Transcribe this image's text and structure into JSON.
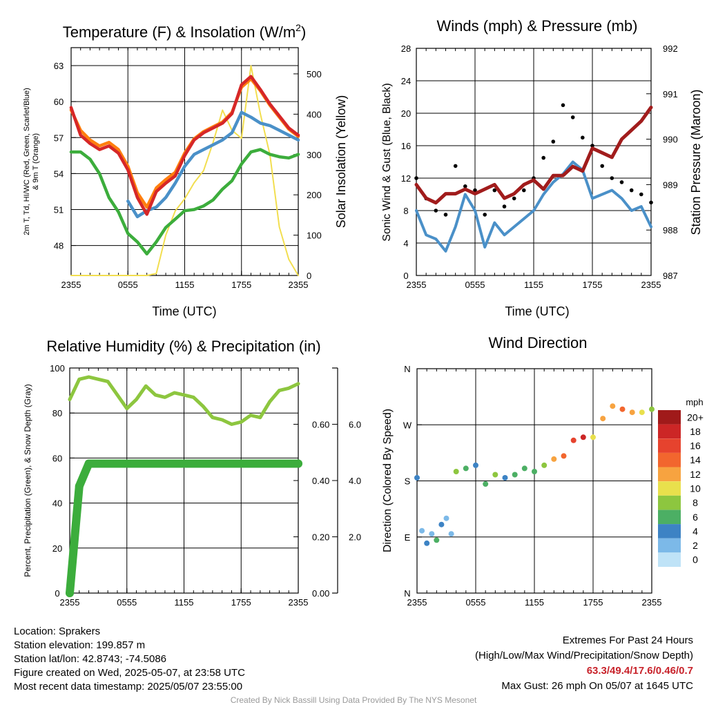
{
  "chart_data": [
    {
      "type": "line",
      "title": "Temperature (F) & Insolation (W/m2)",
      "title_main": "Temperature (F) & Insolation (W/m",
      "title_sup": "2",
      "title_close": ")",
      "xlabel": "Time (UTC)",
      "ylabel_line1": "2m T, Td, HI/WC (Red, Green, Scarlet/Blue)",
      "ylabel_line2": "& 9m T (Orange)",
      "y2label": "Solar Insolation (Yellow)",
      "x_ticks": [
        "2355",
        "0555",
        "1155",
        "1755",
        "2355"
      ],
      "ylim": [
        45.5,
        64.5
      ],
      "y_ticks": [
        48,
        51,
        54,
        57,
        60,
        63
      ],
      "y2lim": [
        0,
        565
      ],
      "y2_ticks": [
        0,
        100,
        200,
        300,
        400,
        500
      ],
      "x_hours": [
        0,
        1,
        2,
        3,
        4,
        5,
        6,
        7,
        8,
        9,
        10,
        11,
        12,
        13,
        14,
        15,
        16,
        17,
        18,
        19,
        20,
        21,
        22,
        23,
        24
      ],
      "series": [
        {
          "name": "2m T",
          "color": "#d62728",
          "axis": "left",
          "values": [
            59.5,
            57.2,
            56.5,
            56.0,
            56.3,
            55.7,
            54.3,
            52.0,
            50.6,
            52.5,
            53.2,
            53.8,
            55.5,
            56.8,
            57.4,
            57.8,
            58.2,
            59.0,
            61.4,
            62.1,
            61.0,
            59.8,
            58.8,
            57.8,
            57.2
          ]
        },
        {
          "name": "9m T",
          "color": "#ff7f0e",
          "axis": "left",
          "values": [
            59.3,
            57.6,
            56.8,
            56.3,
            56.6,
            56.0,
            54.6,
            52.4,
            51.2,
            52.8,
            53.5,
            54.1,
            55.7,
            56.9,
            57.5,
            57.9,
            58.3,
            59.1,
            61.2,
            61.9,
            60.9,
            59.7,
            58.7,
            57.7,
            57.1
          ]
        },
        {
          "name": "HI/WC",
          "color": "#4a90c8",
          "axis": "left",
          "values": [
            null,
            null,
            null,
            null,
            null,
            null,
            51.7,
            50.4,
            50.9,
            51.2,
            52.0,
            53.2,
            54.6,
            55.6,
            56.0,
            56.4,
            56.8,
            57.4,
            59.1,
            58.7,
            58.2,
            58.0,
            57.6,
            57.2,
            56.8
          ]
        },
        {
          "name": "2m Td",
          "color": "#3cad3c",
          "axis": "left",
          "values": [
            55.8,
            55.8,
            55.2,
            54.0,
            52.0,
            50.8,
            49.0,
            48.3,
            47.3,
            48.3,
            49.5,
            50.2,
            50.9,
            51.0,
            51.3,
            51.8,
            52.7,
            53.4,
            54.8,
            55.8,
            56.0,
            55.6,
            55.4,
            55.3,
            55.6
          ]
        },
        {
          "name": "Solar Insolation",
          "color": "#f2de4f",
          "axis": "right",
          "values": [
            0,
            0,
            0,
            0,
            0,
            0,
            0,
            0,
            0,
            5,
            100,
            160,
            190,
            230,
            260,
            330,
            410,
            360,
            340,
            520,
            400,
            300,
            120,
            40,
            0
          ]
        }
      ]
    },
    {
      "type": "line",
      "title": "Winds (mph) & Pressure (mb)",
      "xlabel": "Time (UTC)",
      "ylabel": "Sonic Wind & Gust (Blue, Black)",
      "y2label": "Station Pressure (Maroon)",
      "x_ticks": [
        "2355",
        "0555",
        "1155",
        "1755",
        "2355"
      ],
      "ylim": [
        0,
        28
      ],
      "y_ticks": [
        0,
        4,
        8,
        12,
        16,
        20,
        24,
        28
      ],
      "y2lim": [
        987,
        992
      ],
      "y2_ticks": [
        987,
        988,
        989,
        990,
        991,
        992
      ],
      "x_hours": [
        0,
        1,
        2,
        3,
        4,
        5,
        6,
        7,
        8,
        9,
        10,
        11,
        12,
        13,
        14,
        15,
        16,
        17,
        18,
        19,
        20,
        21,
        22,
        23,
        24
      ],
      "series": [
        {
          "name": "Sonic Wind",
          "color": "#4a90c8",
          "axis": "left",
          "values": [
            8.0,
            5.0,
            4.5,
            3.0,
            6.0,
            10.0,
            8.0,
            3.5,
            6.5,
            5.0,
            6.0,
            7.0,
            8.0,
            10.0,
            11.5,
            12.5,
            14.0,
            13.0,
            9.5,
            10.0,
            10.5,
            9.5,
            8.0,
            8.5,
            6.0
          ]
        },
        {
          "name": "Gust",
          "color": "#000000",
          "axis": "left",
          "values": [
            12.0,
            9.5,
            8.0,
            7.5,
            13.5,
            11.0,
            10.5,
            7.5,
            10.5,
            8.5,
            9.5,
            10.5,
            12.0,
            14.5,
            16.5,
            21.0,
            19.5,
            17.0,
            16.0,
            13.5,
            12.0,
            11.5,
            10.5,
            10.0,
            9.0
          ]
        },
        {
          "name": "Station Pressure",
          "color": "#a11c1c",
          "axis": "right",
          "values": [
            989.0,
            988.7,
            988.6,
            988.8,
            988.8,
            988.9,
            988.8,
            988.9,
            989.0,
            988.7,
            988.8,
            989.0,
            989.1,
            988.9,
            989.2,
            989.2,
            989.4,
            989.3,
            989.8,
            989.7,
            989.6,
            990.0,
            990.2,
            990.4,
            990.7
          ]
        }
      ]
    },
    {
      "type": "line",
      "title": "Relative Humidity (%) & Precipitation (in)",
      "ylabel": "Percent, Precipitation (Green), & Snow Depth (Gray)",
      "x_ticks": [
        "2355",
        "0555",
        "1155",
        "1755",
        "2355"
      ],
      "ylim": [
        0,
        100
      ],
      "y_ticks": [
        0,
        20,
        40,
        60,
        80,
        100
      ],
      "y2lim": [
        0,
        0.8
      ],
      "y2_ticks": [
        "0.00",
        "0.20",
        "0.40",
        "0.60"
      ],
      "y3lim": [
        0,
        8
      ],
      "y3_ticks": [
        "2.0",
        "4.0",
        "6.0"
      ],
      "x_hours": [
        0,
        1,
        2,
        3,
        4,
        5,
        6,
        7,
        8,
        9,
        10,
        11,
        12,
        13,
        14,
        15,
        16,
        17,
        18,
        19,
        20,
        21,
        22,
        23,
        24
      ],
      "series": [
        {
          "name": "Relative Humidity",
          "color": "#8dc63f",
          "axis": "left",
          "values": [
            86,
            95,
            96,
            95,
            94,
            88,
            82,
            86,
            92,
            88,
            87,
            89,
            88,
            87,
            83,
            78,
            77,
            75,
            76,
            79,
            78,
            85,
            90,
            91,
            93
          ]
        },
        {
          "name": "Precipitation",
          "color": "#3cad3c",
          "axis": "right",
          "values": [
            0.0,
            0.38,
            0.46,
            0.46,
            0.46,
            0.46,
            0.46,
            0.46,
            0.46,
            0.46,
            0.46,
            0.46,
            0.46,
            0.46,
            0.46,
            0.46,
            0.46,
            0.46,
            0.46,
            0.46,
            0.46,
            0.46,
            0.46,
            0.46,
            0.46
          ]
        }
      ]
    },
    {
      "type": "scatter",
      "title": "Wind Direction",
      "ylabel": "Direction (Colored By Speed)",
      "x_ticks": [
        "2355",
        "0555",
        "1155",
        "1755",
        "2355"
      ],
      "y_ticks": [
        "N",
        "E",
        "S",
        "W",
        "N"
      ],
      "ylim": [
        0,
        360
      ],
      "colorbar_title": "mph",
      "colorbar_labels": [
        "20+",
        "18",
        "16",
        "14",
        "12",
        "10",
        "8",
        "6",
        "4",
        "2",
        "0"
      ],
      "colorbar_colors": [
        "#a01a1a",
        "#cc2626",
        "#e6432e",
        "#f2662e",
        "#f7a340",
        "#e9e04c",
        "#8dc63f",
        "#4caf64",
        "#3d83c4",
        "#7cb9e8",
        "#bfe3f7"
      ],
      "x_hours": [
        0,
        0.5,
        1,
        1.5,
        2,
        2.5,
        3,
        3.5,
        4,
        5,
        6,
        7,
        8,
        9,
        10,
        11,
        12,
        13,
        14,
        15,
        16,
        17,
        18,
        19,
        20,
        21,
        22,
        23,
        24
      ],
      "direction_deg": [
        185,
        100,
        80,
        95,
        85,
        110,
        120,
        95,
        195,
        200,
        205,
        175,
        190,
        185,
        190,
        200,
        195,
        205,
        215,
        220,
        245,
        250,
        250,
        280,
        300,
        295,
        290,
        290,
        295
      ],
      "speed_mph": [
        4,
        3,
        5,
        2,
        6,
        4,
        3,
        2,
        8,
        6,
        5,
        7,
        8,
        4,
        6,
        7,
        6,
        8,
        12,
        14,
        16,
        18,
        10,
        12,
        12,
        14,
        12,
        10,
        8
      ]
    }
  ],
  "footer_left": [
    "Location: Sprakers",
    "Station elevation: 199.857 m",
    "Station lat/lon: 42.8743; -74.5086",
    "Figure created on Wed, 2025-05-07, at 23:58 UTC",
    "Most recent data timestamp: 2025/05/07 23:55:00"
  ],
  "extremes": {
    "title": "Extremes For Past 24 Hours",
    "subtitle": "(High/Low/Max Wind/Precipitation/Snow Depth)",
    "values": "63.3/49.4/17.6/0.46/0.7",
    "max_gust": "Max Gust: 26 mph On 05/07 at 1645 UTC"
  },
  "credit": "Created By Nick Bassill Using Data Provided By The NYS Mesonet"
}
